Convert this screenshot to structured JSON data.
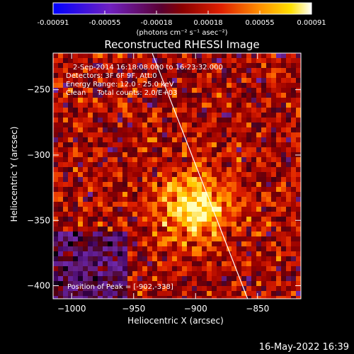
{
  "chart_data": {
    "type": "heatmap",
    "title": "Reconstructed RHESSI Image",
    "xlabel": "Heliocentric X (arcsec)",
    "ylabel": "Heliocentric Y (arcsec)",
    "xlim": [
      -1015,
      -815
    ],
    "ylim": [
      -410,
      -222
    ],
    "x_ticks": [
      -1000,
      -950,
      -900,
      -850
    ],
    "y_ticks": [
      -400,
      -350,
      -300,
      -250
    ],
    "colorbar": {
      "min": -0.00091,
      "max": 0.00091,
      "ticks": [
        "-0.00091",
        "-0.00055",
        "-0.00018",
        "0.00018",
        "0.00055",
        "0.00091"
      ],
      "units": "(photons cm⁻² s⁻¹ asec⁻²)"
    },
    "info_lines": [
      "2-Sep-2014 16:18:08.000 to 16:23:32.000",
      "Detectors: 3F 6F 9F, Att:0",
      "Energy Range: 12.0 - 25.0 keV",
      "Clean     Total counts: 2.0/E+03"
    ],
    "peak_label": "Position of Peak = [-902,-338]",
    "peak": {
      "x": -902,
      "y": -338
    },
    "limb_line": {
      "from": [
        -935,
        -222
      ],
      "to": [
        -858,
        -410
      ]
    },
    "timestamp": "16-May-2022 16:39"
  }
}
